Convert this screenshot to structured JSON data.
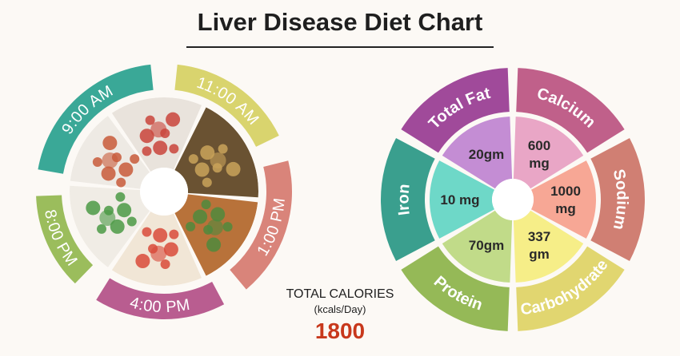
{
  "title": "Liver Disease Diet Chart",
  "meal_times": [
    {
      "label": "9:00 AM",
      "color": "#3aa897"
    },
    {
      "label": "11:00 AM",
      "color": "#d9d46e"
    },
    {
      "label": "1:00 PM",
      "color": "#d9847a"
    },
    {
      "label": "4:00 PM",
      "color": "#b95d90"
    },
    {
      "label": "8:00 PM",
      "color": "#9bbd5c"
    }
  ],
  "nutrients": [
    {
      "name": "Calcium",
      "value": "600 mg",
      "value_lines": [
        "600",
        "mg"
      ],
      "ring_color": "#c0608a",
      "fill_color": "#e9a6c6"
    },
    {
      "name": "Sodium",
      "value": "1000 mg",
      "value_lines": [
        "1000",
        "mg"
      ],
      "ring_color": "#d07f73",
      "fill_color": "#f7a795"
    },
    {
      "name": "Carbohydrate",
      "value": "337 gm",
      "value_lines": [
        "337",
        "gm"
      ],
      "ring_color": "#e1d670",
      "fill_color": "#f6ee88"
    },
    {
      "name": "Protein",
      "value": "70gm",
      "value_lines": [
        "70gm"
      ],
      "ring_color": "#95b957",
      "fill_color": "#c1db89"
    },
    {
      "name": "Iron",
      "value": "10 mg",
      "value_lines": [
        "10 mg"
      ],
      "ring_color": "#3a9f8e",
      "fill_color": "#6ed8c8"
    },
    {
      "name": "Total Fat",
      "value": "20gm",
      "value_lines": [
        "20gm"
      ],
      "ring_color": "#a04a9a",
      "fill_color": "#c48dd4"
    }
  ],
  "total_calories": {
    "label": "TOTAL CALORIES",
    "unit": "(kcals/Day)",
    "value": "1800",
    "value_color": "#c8381c"
  }
}
